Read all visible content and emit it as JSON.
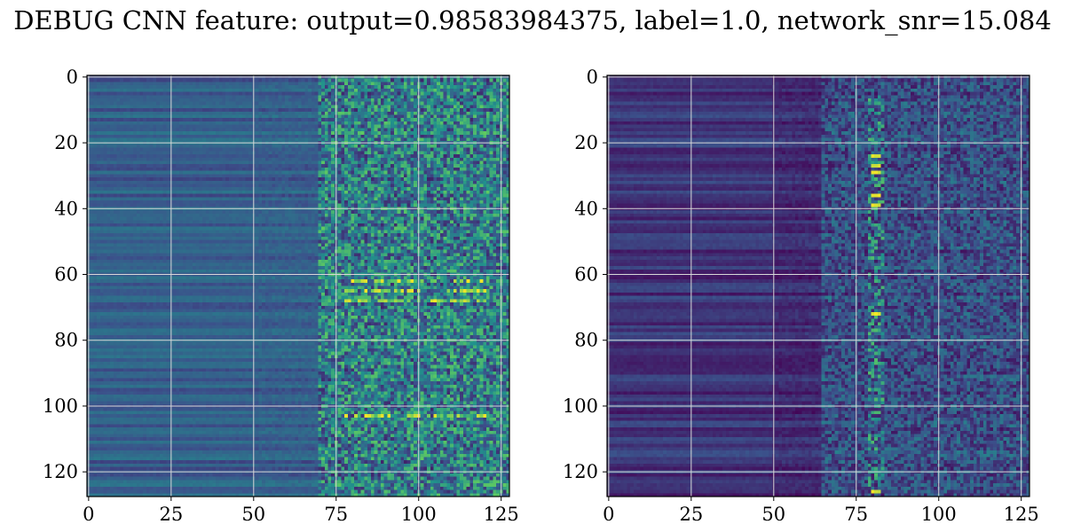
{
  "figure": {
    "title": "DEBUG CNN feature: output=0.98583984375, label=1.0, network_snr=15.084"
  },
  "chart_data": [
    {
      "type": "heatmap",
      "title": "",
      "xlabel": "",
      "ylabel": "",
      "colormap": "viridis",
      "rows": 128,
      "cols": 128,
      "xlim": [
        -0.5,
        127.5
      ],
      "ylim": [
        127.5,
        -0.5
      ],
      "grid": true,
      "x_ticks": [
        0,
        25,
        50,
        75,
        100,
        125
      ],
      "y_ticks": [
        0,
        20,
        40,
        60,
        80,
        100,
        120
      ],
      "x_tick_labels": [
        "0",
        "25",
        "50",
        "75",
        "100",
        "125"
      ],
      "y_tick_labels": [
        "0",
        "20",
        "40",
        "60",
        "80",
        "100",
        "120"
      ],
      "summary": {
        "cols_0_50_level": 0.3,
        "cols_50_75_level": 0.3,
        "cols_75_127_level": 0.45,
        "noise_onset_col": 70,
        "bright_rows": [
          62,
          65,
          68,
          103
        ],
        "bright_col_range": [
          78,
          120
        ],
        "value_range": [
          0.0,
          1.0
        ]
      }
    },
    {
      "type": "heatmap",
      "title": "",
      "xlabel": "",
      "ylabel": "",
      "colormap": "viridis",
      "rows": 128,
      "cols": 128,
      "xlim": [
        -0.5,
        127.5
      ],
      "ylim": [
        127.5,
        -0.5
      ],
      "grid": true,
      "x_ticks": [
        0,
        25,
        50,
        75,
        100,
        125
      ],
      "y_ticks": [
        0,
        20,
        40,
        60,
        80,
        100,
        120
      ],
      "x_tick_labels": [
        "0",
        "25",
        "50",
        "75",
        "100",
        "125"
      ],
      "y_tick_labels": [
        "0",
        "20",
        "40",
        "60",
        "80",
        "100",
        "120"
      ],
      "summary": {
        "cols_0_50_level": 0.15,
        "cols_50_75_level": 0.12,
        "cols_75_127_level": 0.25,
        "noise_onset_col": 65,
        "bright_col": 81,
        "bright_rows": [
          24,
          27,
          29,
          36,
          39,
          72,
          126
        ],
        "value_range": [
          0.0,
          1.0
        ]
      }
    }
  ]
}
